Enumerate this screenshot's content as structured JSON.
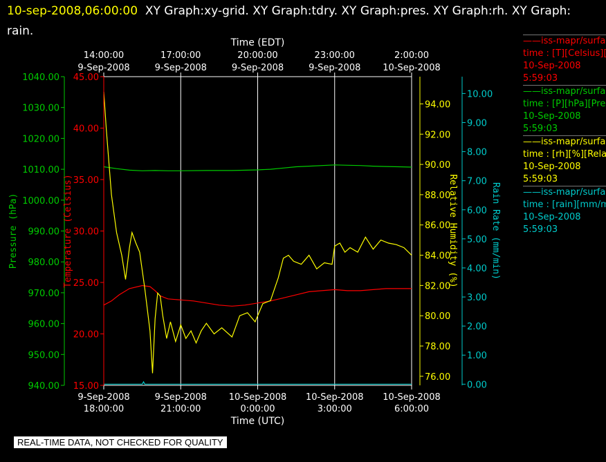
{
  "title": {
    "date": "10-sep-2008,06:00:00",
    "rest": "XY Graph:xy-grid.  XY Graph:tdry.  XY Graph:pres.  XY Graph:rh.  XY Graph: rain."
  },
  "note": "REAL-TIME DATA, NOT CHECKED FOR QUALITY",
  "legend": [
    {
      "l1": "——iss-mapr/surface",
      "l2": "time : [T][Celsius][T",
      "l3": "10-Sep-2008",
      "l4": "5:59:03",
      "color": "#ff0000"
    },
    {
      "l1": "——iss-mapr/surface",
      "l2": "time : [P][hPa][Pres",
      "l3": "10-Sep-2008",
      "l4": "5:59:03",
      "color": "#00cc00"
    },
    {
      "l1": "——iss-mapr/surface",
      "l2": "time : [rh][%][Relati",
      "l3": "10-Sep-2008",
      "l4": "5:59:03",
      "color": "#ffff00"
    },
    {
      "l1": "——iss-mapr/surface",
      "l2": "time : [rain][mm/min",
      "l3": "10-Sep-2008",
      "l4": "5:59:03",
      "color": "#00cccc"
    }
  ],
  "chart_data": {
    "type": "line",
    "top_axis": {
      "label": "Time (EDT)",
      "ticks": [
        [
          "14:00:00",
          "9-Sep-2008"
        ],
        [
          "17:00:00",
          "9-Sep-2008"
        ],
        [
          "20:00:00",
          "9-Sep-2008"
        ],
        [
          "23:00:00",
          "9-Sep-2008"
        ],
        [
          "2:00:00",
          "10-Sep-2008"
        ]
      ]
    },
    "bottom_axis": {
      "label": "Time (UTC)",
      "ticks": [
        [
          "9-Sep-2008",
          "18:00:00"
        ],
        [
          "9-Sep-2008",
          "21:00:00"
        ],
        [
          "10-Sep-2008",
          "0:00:00"
        ],
        [
          "10-Sep-2008",
          "3:00:00"
        ],
        [
          "10-Sep-2008",
          "6:00:00"
        ]
      ],
      "x_hours_utc": [
        0,
        3,
        6,
        9,
        12
      ],
      "xlim": [
        0,
        12
      ]
    },
    "axes": {
      "pressure": {
        "label": "Pressure (hPa)",
        "color": "#00cc00",
        "ylim": [
          940,
          1040
        ],
        "ticks": [
          "940.00",
          "950.00",
          "960.00",
          "970.00",
          "980.00",
          "990.00",
          "1000.00",
          "1010.00",
          "1020.00",
          "1030.00",
          "1040.00"
        ]
      },
      "temperature": {
        "label": "Temperature (Celsius)",
        "color": "#ff0000",
        "ylim": [
          15,
          45
        ],
        "ticks": [
          "15.00",
          "20.00",
          "25.00",
          "30.00",
          "35.00",
          "40.00",
          "45.00"
        ]
      },
      "humidity": {
        "label": "Relative Humidity (%)",
        "color": "#ffff00",
        "ylim": [
          75.4,
          95.8
        ],
        "ticks": [
          "76.00",
          "78.00",
          "80.00",
          "82.00",
          "84.00",
          "86.00",
          "88.00",
          "90.00",
          "92.00",
          "94.00"
        ]
      },
      "rain": {
        "label": "Rain Rate (mm/min)",
        "color": "#00cccc",
        "ylim": [
          -0.04,
          10.58
        ],
        "ticks": [
          "0.00",
          "1.00",
          "2.00",
          "3.00",
          "4.00",
          "5.00",
          "6.00",
          "7.00",
          "8.00",
          "9.00",
          "10.00"
        ]
      }
    },
    "series": [
      {
        "name": "Temperature",
        "axis": "temperature",
        "color": "#ff0000",
        "x": [
          0,
          0.3,
          0.6,
          1.0,
          1.5,
          1.8,
          2.0,
          2.2,
          2.5,
          3.0,
          3.5,
          4.0,
          4.5,
          5.0,
          5.5,
          6.0,
          6.5,
          7.0,
          7.5,
          8.0,
          8.5,
          9.0,
          9.5,
          10.0,
          10.5,
          11.0,
          11.5,
          12.0
        ],
        "y": [
          22.8,
          23.2,
          23.8,
          24.4,
          24.7,
          24.6,
          24.2,
          23.7,
          23.4,
          23.3,
          23.2,
          23.0,
          22.8,
          22.7,
          22.8,
          23.0,
          23.2,
          23.5,
          23.8,
          24.1,
          24.2,
          24.3,
          24.2,
          24.2,
          24.3,
          24.4,
          24.4,
          24.4
        ]
      },
      {
        "name": "Pressure",
        "axis": "pressure",
        "color": "#00cc00",
        "x": [
          0,
          0.5,
          1.0,
          1.5,
          2.0,
          2.5,
          3.0,
          4.0,
          5.0,
          6.0,
          6.5,
          7.0,
          7.5,
          8.0,
          9.0,
          9.5,
          10.0,
          10.5,
          11.0,
          11.5,
          12.0
        ],
        "y": [
          1010.8,
          1010.2,
          1009.7,
          1009.5,
          1009.6,
          1009.5,
          1009.5,
          1009.6,
          1009.6,
          1009.8,
          1010.0,
          1010.4,
          1010.8,
          1011.0,
          1011.4,
          1011.3,
          1011.2,
          1011.0,
          1010.9,
          1010.8,
          1010.7
        ]
      },
      {
        "name": "Relative Humidity",
        "axis": "humidity",
        "color": "#ffff00",
        "x": [
          0,
          0.1,
          0.3,
          0.5,
          0.7,
          0.85,
          1.0,
          1.1,
          1.25,
          1.4,
          1.6,
          1.8,
          1.9,
          2.0,
          2.1,
          2.2,
          2.3,
          2.45,
          2.6,
          2.8,
          3.0,
          3.2,
          3.4,
          3.6,
          3.8,
          4.0,
          4.3,
          4.6,
          5.0,
          5.3,
          5.6,
          5.9,
          6.2,
          6.5,
          6.8,
          7.0,
          7.2,
          7.4,
          7.7,
          8.0,
          8.3,
          8.6,
          8.9,
          9.0,
          9.2,
          9.4,
          9.6,
          9.9,
          10.2,
          10.5,
          10.8,
          11.1,
          11.4,
          11.7,
          12.0
        ],
        "y": [
          94.8,
          92.3,
          88.0,
          85.5,
          84.0,
          82.4,
          84.5,
          85.5,
          84.8,
          84.2,
          81.8,
          79.0,
          76.2,
          79.8,
          81.5,
          81.3,
          80.0,
          78.5,
          79.6,
          78.3,
          79.4,
          78.5,
          79.0,
          78.2,
          79.0,
          79.5,
          78.8,
          79.2,
          78.6,
          80.0,
          80.2,
          79.6,
          80.8,
          81.0,
          82.5,
          83.8,
          84.0,
          83.6,
          83.4,
          84.0,
          83.1,
          83.5,
          83.4,
          84.6,
          84.8,
          84.2,
          84.5,
          84.2,
          85.2,
          84.4,
          85.0,
          84.8,
          84.7,
          84.5,
          84.0
        ]
      },
      {
        "name": "Rain Rate",
        "axis": "rain",
        "color": "#00cccc",
        "x": [
          0,
          1.5,
          1.55,
          1.6,
          1.65,
          3.0,
          6.0,
          9.0,
          12.0
        ],
        "y": [
          0.0,
          0.0,
          0.08,
          0.0,
          0.0,
          0.0,
          0.0,
          0.0,
          0.0
        ]
      }
    ],
    "grid": true,
    "legend_position": "right"
  }
}
